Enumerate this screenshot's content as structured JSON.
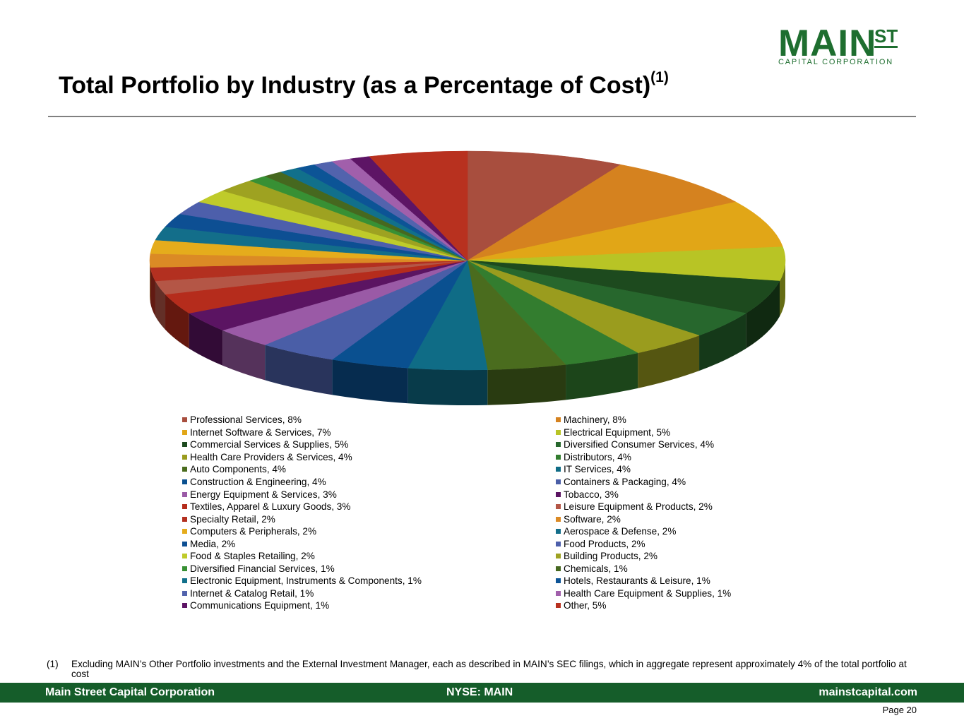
{
  "logo": {
    "main": "MAIN",
    "st": "ST",
    "sub": "CAPITAL CORPORATION"
  },
  "header": {
    "title": "Total Portfolio by Industry (as a Percentage of Cost)",
    "title_note": "(1)"
  },
  "colors": {
    "brand_green": "#1e6e2f",
    "footer_green": "#155d2a",
    "rule": "#808080"
  },
  "chart_data": {
    "type": "pie",
    "title": "Total Portfolio by Industry (as a Percentage of Cost)",
    "legend_position": "bottom",
    "slices": [
      {
        "label": "Professional Services, 8%",
        "name": "Professional Services",
        "value": 8,
        "color": "#a84e3e"
      },
      {
        "label": "Machinery, 8%",
        "name": "Machinery",
        "value": 8,
        "color": "#d5821f"
      },
      {
        "label": "Internet Software & Services, 7%",
        "name": "Internet Software & Services",
        "value": 7,
        "color": "#e1a617"
      },
      {
        "label": "Electrical Equipment, 5%",
        "name": "Electrical Equipment",
        "value": 5,
        "color": "#b8c425"
      },
      {
        "label": "Commercial Services & Supplies, 5%",
        "name": "Commercial Services & Supplies",
        "value": 5,
        "color": "#1d4a1e"
      },
      {
        "label": "Diversified Consumer Services, 4%",
        "name": "Diversified Consumer Services",
        "value": 4,
        "color": "#27672d"
      },
      {
        "label": "Health Care Providers & Services, 4%",
        "name": "Health Care Providers & Services",
        "value": 4,
        "color": "#9a9c1e"
      },
      {
        "label": "Distributors, 4%",
        "name": "Distributors",
        "value": 4,
        "color": "#337d2f"
      },
      {
        "label": "Auto Components, 4%",
        "name": "Auto Components",
        "value": 4,
        "color": "#4a6c1e"
      },
      {
        "label": "IT Services, 4%",
        "name": "IT Services",
        "value": 4,
        "color": "#0f6c86"
      },
      {
        "label": "Construction & Engineering, 4%",
        "name": "Construction & Engineering",
        "value": 4,
        "color": "#0a5090"
      },
      {
        "label": "Containers & Packaging, 4%",
        "name": "Containers & Packaging",
        "value": 4,
        "color": "#4a5ea7"
      },
      {
        "label": "Energy Equipment & Services, 3%",
        "name": "Energy Equipment & Services",
        "value": 3,
        "color": "#9a5aa6"
      },
      {
        "label": "Tobacco, 3%",
        "name": "Tobacco",
        "value": 3,
        "color": "#5b1462"
      },
      {
        "label": "Textiles, Apparel & Luxury Goods, 3%",
        "name": "Textiles, Apparel & Luxury Goods",
        "value": 3,
        "color": "#b52c1c"
      },
      {
        "label": "Leisure Equipment & Products, 2%",
        "name": "Leisure Equipment & Products",
        "value": 2,
        "color": "#b45646"
      },
      {
        "label": "Specialty Retail, 2%",
        "name": "Specialty Retail",
        "value": 2,
        "color": "#b33020"
      },
      {
        "label": "Software, 2%",
        "name": "Software",
        "value": 2,
        "color": "#db8a25"
      },
      {
        "label": "Computers & Peripherals, 2%",
        "name": "Computers & Peripherals",
        "value": 2,
        "color": "#e5ac1c"
      },
      {
        "label": "Aerospace & Defense, 2%",
        "name": "Aerospace & Defense",
        "value": 2,
        "color": "#136e8a"
      },
      {
        "label": "Media, 2%",
        "name": "Media",
        "value": 2,
        "color": "#0d4f93"
      },
      {
        "label": "Food Products, 2%",
        "name": "Food Products",
        "value": 2,
        "color": "#4d5fab"
      },
      {
        "label": "Food & Staples Retailing, 2%",
        "name": "Food & Staples Retailing",
        "value": 2,
        "color": "#bfcb2a"
      },
      {
        "label": "Building Products, 2%",
        "name": "Building Products",
        "value": 2,
        "color": "#9ea221"
      },
      {
        "label": "Diversified Financial Services, 1%",
        "name": "Diversified Financial Services",
        "value": 1,
        "color": "#389034"
      },
      {
        "label": "Chemicals, 1%",
        "name": "Chemicals",
        "value": 1,
        "color": "#46681f"
      },
      {
        "label": "Electronic Equipment, Instruments & Components, 1%",
        "name": "Electronic Equipment, Instruments & Components",
        "value": 1,
        "color": "#11708b"
      },
      {
        "label": "Hotels, Restaurants & Leisure, 1%",
        "name": "Hotels, Restaurants & Leisure",
        "value": 1,
        "color": "#0c5496"
      },
      {
        "label": "Internet & Catalog Retail, 1%",
        "name": "Internet & Catalog Retail",
        "value": 1,
        "color": "#5263ad"
      },
      {
        "label": "Health Care Equipment & Supplies, 1%",
        "name": "Health Care Equipment & Supplies",
        "value": 1,
        "color": "#a15fab"
      },
      {
        "label": "Communications Equipment, 1%",
        "name": "Communications Equipment",
        "value": 1,
        "color": "#5d1465"
      },
      {
        "label": "Other, 5%",
        "name": "Other",
        "value": 5,
        "color": "#b8311f"
      }
    ]
  },
  "footnote": {
    "number": "(1)",
    "text": "Excluding MAIN’s Other Portfolio investments and the External Investment Manager, each as described in MAIN’s SEC filings, which in aggregate represent approximately 4% of the total portfolio at cost"
  },
  "footer": {
    "left": "Main Street Capital Corporation",
    "center": "NYSE: MAIN",
    "right": "mainstcapital.com"
  },
  "page": {
    "label": "Page  20"
  }
}
